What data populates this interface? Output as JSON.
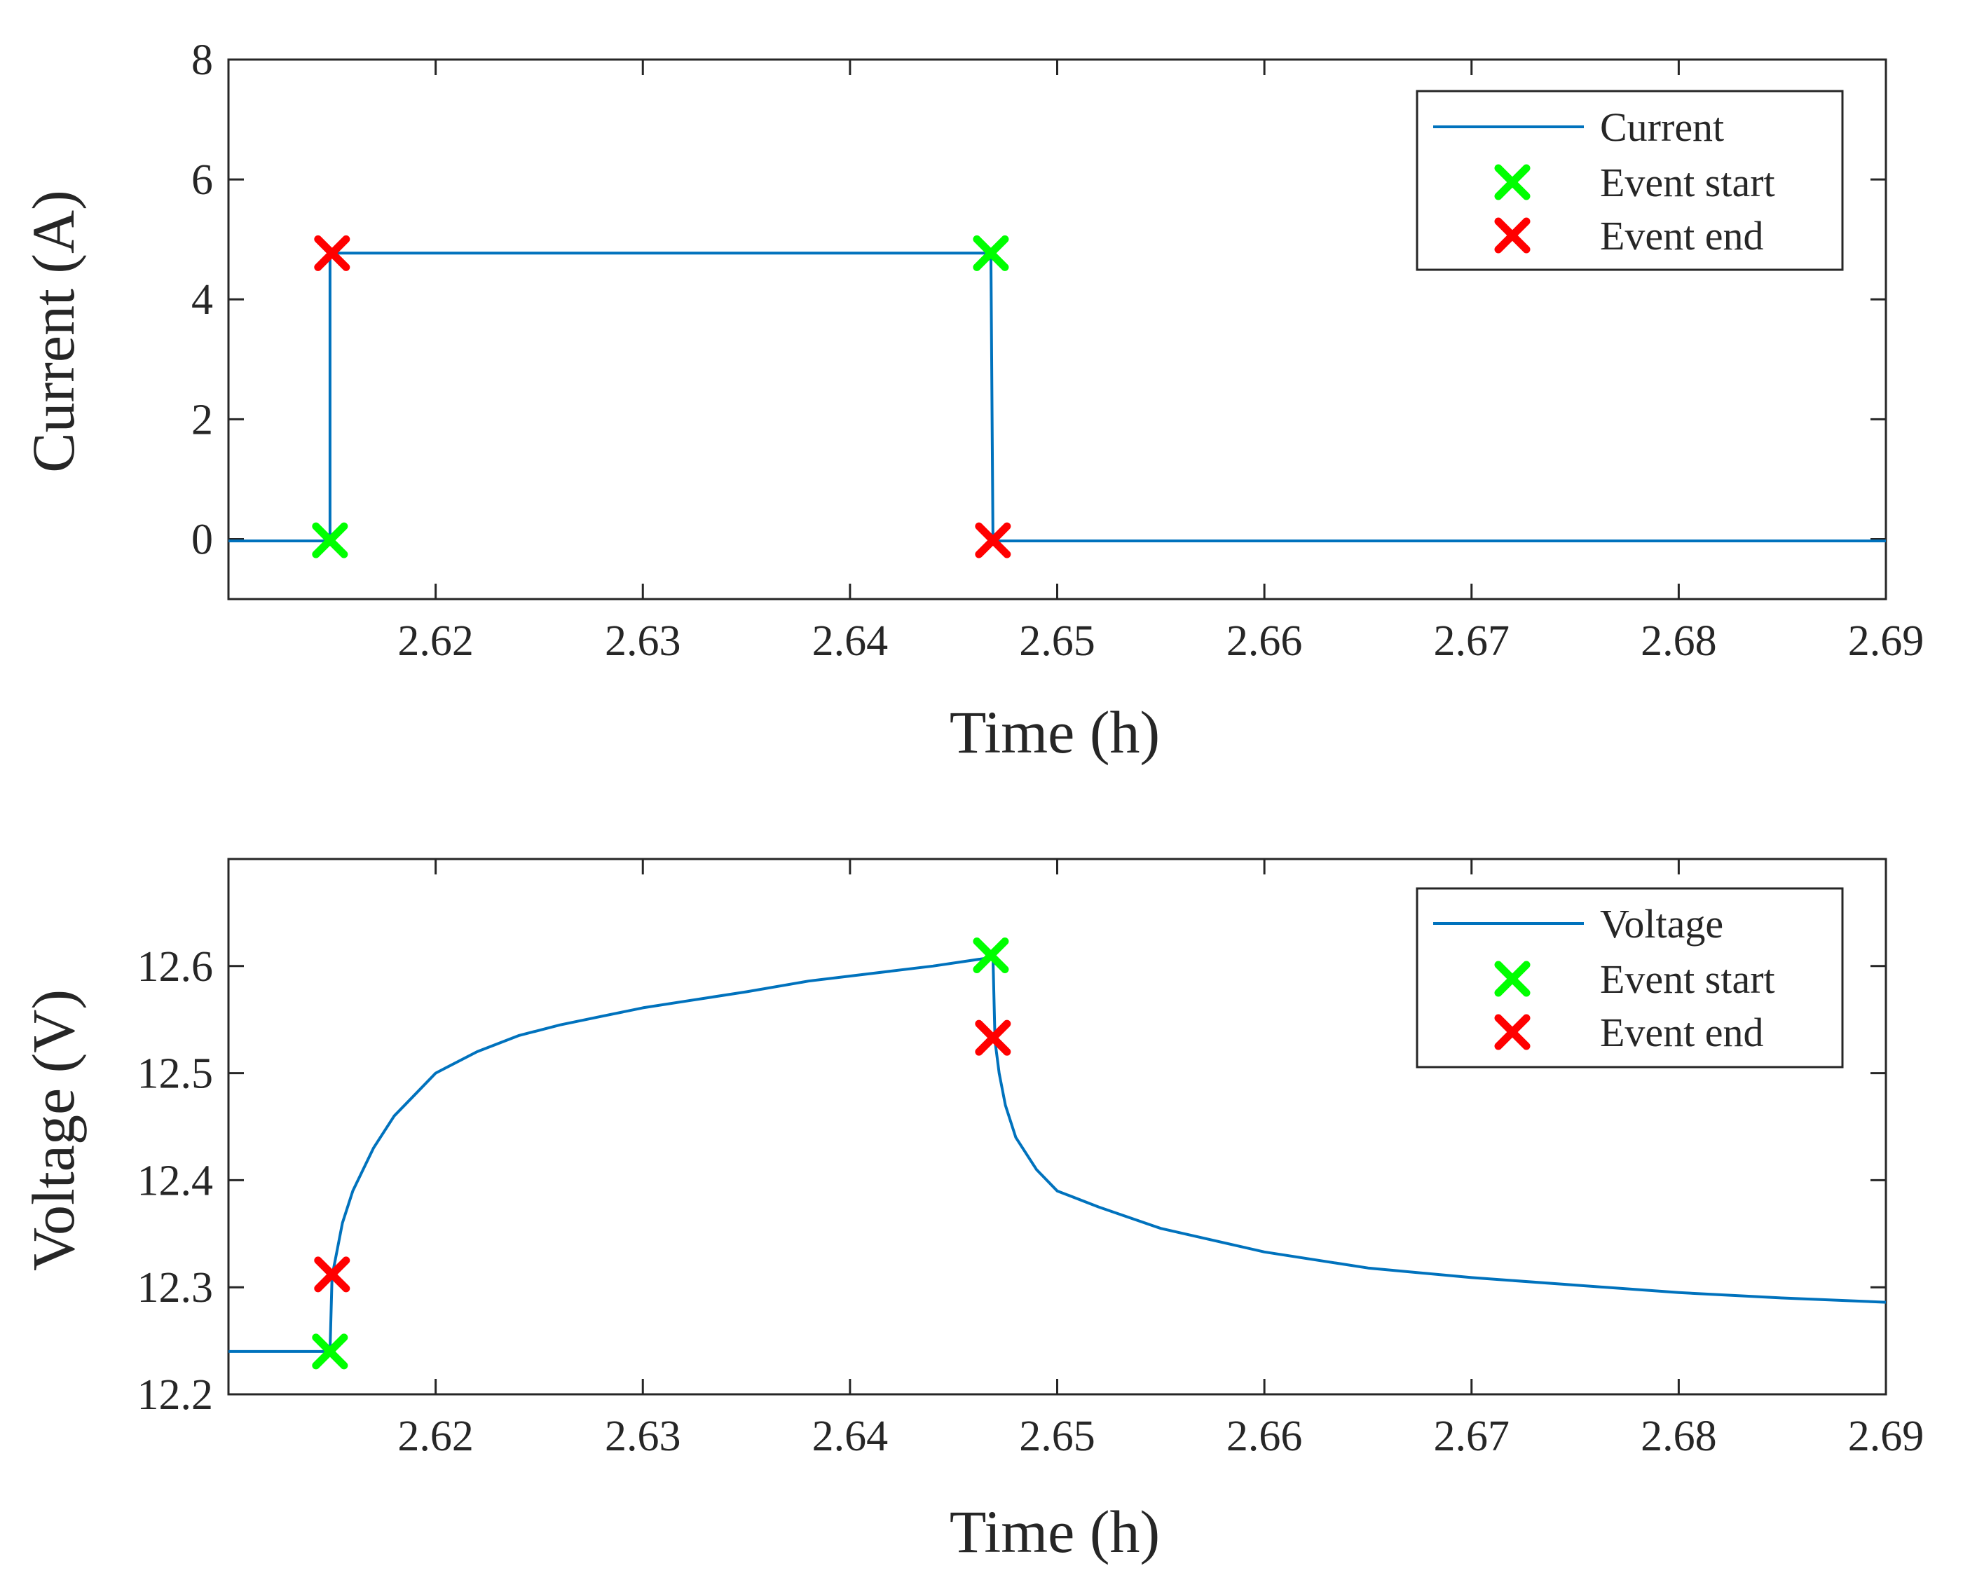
{
  "figure": {
    "background": "#ffffff",
    "axis_color": "#262626",
    "line_color": "#0072BD",
    "start_marker_color": "#00FF00",
    "end_marker_color": "#FF0000"
  },
  "chart_data": [
    {
      "type": "line",
      "xlabel": "Time (h)",
      "ylabel": "Current (A)",
      "xlim": [
        2.61,
        2.69
      ],
      "ylim": [
        -1,
        8
      ],
      "xticks": [
        2.62,
        2.63,
        2.64,
        2.65,
        2.66,
        2.67,
        2.68,
        2.69
      ],
      "xtick_labels": [
        "2.62",
        "2.63",
        "2.64",
        "2.65",
        "2.66",
        "2.67",
        "2.68",
        "2.69"
      ],
      "yticks": [
        0,
        2,
        4,
        6,
        8
      ],
      "ytick_labels": [
        "0",
        "2",
        "4",
        "6",
        "8"
      ],
      "legend_position": "top-right",
      "legend": [
        "Current",
        "Event start",
        "Event end"
      ],
      "series": [
        {
          "name": "Current",
          "kind": "line",
          "x": [
            2.61,
            2.6149,
            2.6149,
            2.6468,
            2.6469,
            2.65,
            2.66,
            2.67,
            2.68,
            2.69
          ],
          "y": [
            -0.03,
            -0.03,
            4.77,
            4.77,
            -0.03,
            -0.03,
            -0.03,
            -0.03,
            -0.03,
            -0.03
          ]
        },
        {
          "name": "Event start",
          "kind": "marker",
          "x": [
            2.6149,
            2.6468
          ],
          "y": [
            -0.02,
            4.77
          ]
        },
        {
          "name": "Event end",
          "kind": "marker",
          "x": [
            2.615,
            2.6469
          ],
          "y": [
            4.77,
            -0.02
          ]
        }
      ]
    },
    {
      "type": "line",
      "xlabel": "Time (h)",
      "ylabel": "Voltage (V)",
      "xlim": [
        2.61,
        2.69
      ],
      "ylim": [
        12.2,
        12.7
      ],
      "xticks": [
        2.62,
        2.63,
        2.64,
        2.65,
        2.66,
        2.67,
        2.68,
        2.69
      ],
      "xtick_labels": [
        "2.62",
        "2.63",
        "2.64",
        "2.65",
        "2.66",
        "2.67",
        "2.68",
        "2.69"
      ],
      "yticks": [
        12.2,
        12.3,
        12.4,
        12.5,
        12.6
      ],
      "ytick_labels": [
        "12.2",
        "12.3",
        "12.4",
        "12.5",
        "12.6"
      ],
      "legend_position": "top-right",
      "legend": [
        "Voltage",
        "Event start",
        "Event end"
      ],
      "series": [
        {
          "name": "Voltage",
          "kind": "line",
          "x": [
            2.61,
            2.6148,
            2.6149,
            2.615,
            2.6152,
            2.6155,
            2.616,
            2.617,
            2.618,
            2.619,
            2.62,
            2.622,
            2.624,
            2.626,
            2.628,
            2.63,
            2.632,
            2.635,
            2.638,
            2.641,
            2.644,
            2.6468,
            2.6469,
            2.647,
            2.6472,
            2.6475,
            2.648,
            2.649,
            2.65,
            2.652,
            2.655,
            2.66,
            2.665,
            2.67,
            2.675,
            2.68,
            2.685,
            2.69
          ],
          "y": [
            12.24,
            12.24,
            12.24,
            12.31,
            12.33,
            12.36,
            12.39,
            12.43,
            12.46,
            12.48,
            12.5,
            12.52,
            12.535,
            12.545,
            12.553,
            12.561,
            12.567,
            12.576,
            12.586,
            12.593,
            12.6,
            12.608,
            12.608,
            12.53,
            12.5,
            12.47,
            12.44,
            12.41,
            12.39,
            12.375,
            12.355,
            12.333,
            12.318,
            12.309,
            12.302,
            12.295,
            12.29,
            12.286
          ]
        },
        {
          "name": "Event start",
          "kind": "marker",
          "x": [
            2.6149,
            2.6468
          ],
          "y": [
            12.24,
            12.61
          ]
        },
        {
          "name": "Event end",
          "kind": "marker",
          "x": [
            2.615,
            2.6469
          ],
          "y": [
            12.312,
            12.533
          ]
        }
      ]
    }
  ]
}
